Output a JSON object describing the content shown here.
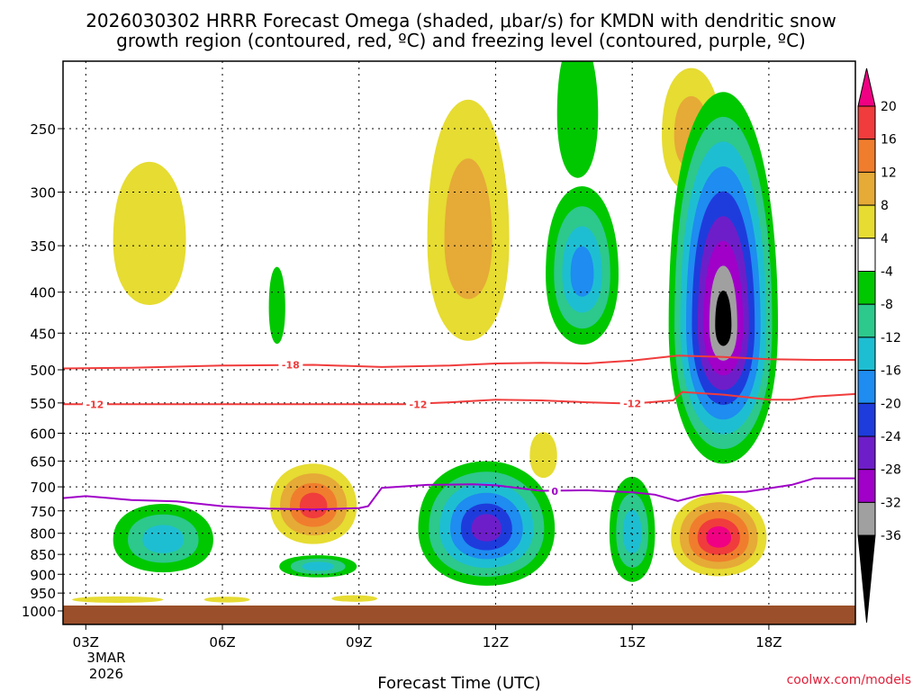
{
  "chart_data": {
    "type": "heatmap",
    "title_line1": "2026030302 HRRR Forecast Omega (shaded, μbar/s) for KMDN with dendritic snow",
    "title_line2": "growth region (contoured, red, ºC) and freezing level (contoured, purple, ºC)",
    "xlabel": "Forecast Time (UTC)",
    "x_ticks": [
      "03Z",
      "06Z",
      "09Z",
      "12Z",
      "15Z",
      "18Z"
    ],
    "x_tick_hours": [
      3,
      6,
      9,
      12,
      15,
      18
    ],
    "x_date_line1": "3MAR",
    "x_date_line2": "2026",
    "xlim": [
      2.5,
      19.9
    ],
    "y_ticks": [
      250,
      300,
      350,
      400,
      450,
      500,
      550,
      600,
      650,
      700,
      750,
      800,
      850,
      900,
      950,
      1000
    ],
    "ylim_hpa": [
      200,
      1000
    ],
    "colorbar": {
      "labels": [
        "20",
        "16",
        "12",
        "8",
        "4",
        "-4",
        "-8",
        "-12",
        "-16",
        "-20",
        "-24",
        "-28",
        "-32",
        "-36"
      ],
      "colors": [
        "#f00082",
        "#f03c3c",
        "#f07d2d",
        "#e6aa37",
        "#e6dc32",
        "#ffffff",
        "#00c800",
        "#2dc88c",
        "#1ebed2",
        "#1e8cf0",
        "#1e3cdc",
        "#6e1ec8",
        "#a000c8",
        "#a0a0a0",
        "#000000"
      ]
    },
    "contours": [
      {
        "name": "dgz-top",
        "label": "-18",
        "color": "#f03c3c",
        "points": [
          [
            2.5,
            498
          ],
          [
            4,
            497
          ],
          [
            6,
            494
          ],
          [
            8,
            493
          ],
          [
            9.5,
            496
          ],
          [
            11,
            494
          ],
          [
            12,
            491
          ],
          [
            13,
            490
          ],
          [
            14,
            491
          ],
          [
            15,
            487
          ],
          [
            16,
            480
          ],
          [
            17,
            482
          ],
          [
            18,
            485
          ],
          [
            19,
            486
          ],
          [
            19.9,
            486
          ]
        ],
        "label_at": [
          7.5,
          493
        ]
      },
      {
        "name": "dgz-bottom",
        "label": "-12",
        "color": "#f03c3c",
        "points": [
          [
            2.5,
            552
          ],
          [
            4,
            552
          ],
          [
            6,
            552
          ],
          [
            8,
            552
          ],
          [
            10,
            552
          ],
          [
            11,
            549
          ],
          [
            12,
            545
          ],
          [
            13,
            546
          ],
          [
            14,
            549
          ],
          [
            15,
            551
          ],
          [
            15.9,
            546
          ],
          [
            16.1,
            533
          ],
          [
            17,
            537
          ],
          [
            18,
            545
          ],
          [
            18.5,
            545
          ],
          [
            19,
            540
          ],
          [
            19.9,
            536
          ]
        ],
        "label_at": [
          [
            3.2,
            552
          ],
          [
            10.3,
            552
          ],
          [
            15.0,
            551
          ]
        ]
      },
      {
        "name": "freezing-level",
        "label": "0",
        "color": "#a000c8",
        "points": [
          [
            2.5,
            723
          ],
          [
            3,
            719
          ],
          [
            4,
            727
          ],
          [
            5,
            730
          ],
          [
            6,
            740
          ],
          [
            7,
            745
          ],
          [
            8,
            747
          ],
          [
            9,
            744
          ],
          [
            9.2,
            740
          ],
          [
            9.5,
            702
          ],
          [
            10.5,
            696
          ],
          [
            11.5,
            695
          ],
          [
            12,
            697
          ],
          [
            13,
            708
          ],
          [
            14,
            707
          ],
          [
            15,
            711
          ],
          [
            15.5,
            716
          ],
          [
            16,
            729
          ],
          [
            16.5,
            717
          ],
          [
            17,
            711
          ],
          [
            17.5,
            710
          ],
          [
            18,
            703
          ],
          [
            18.5,
            696
          ],
          [
            19,
            683
          ],
          [
            19.9,
            683
          ]
        ],
        "label_at": [
          13.3,
          709
        ]
      }
    ],
    "omega_cells": [
      {
        "id": "yellow-upper-left",
        "hour": 4.4,
        "hpa": 345,
        "dh": 0.8,
        "dp": 70,
        "values": [
          4
        ]
      },
      {
        "id": "green-small-07z",
        "hour": 7.2,
        "hpa": 418,
        "dh": 0.18,
        "dp": 46,
        "values": [
          -4
        ]
      },
      {
        "id": "upper-core-11z",
        "hour": 11.4,
        "hpa": 345,
        "dh": 0.9,
        "dp": 115,
        "values": [
          4,
          8
        ]
      },
      {
        "id": "upper-green-14z",
        "hour": 13.8,
        "hpa": 240,
        "dh": 0.45,
        "dp": 48,
        "values": [
          -4
        ]
      },
      {
        "id": "upper-green-14z-b",
        "hour": 13.9,
        "hpa": 380,
        "dh": 0.8,
        "dp": 85,
        "values": [
          -4,
          -8,
          -12,
          -16
        ]
      },
      {
        "id": "upper-yellow-16z",
        "hour": 16.3,
        "hpa": 255,
        "dh": 0.65,
        "dp": 45,
        "values": [
          4,
          8
        ]
      },
      {
        "id": "strong-ascent-17z",
        "hour": 17.0,
        "hpa": 440,
        "dh": 1.2,
        "dp": 215,
        "values": [
          -4,
          -8,
          -12,
          -16,
          -20,
          -24,
          -28,
          -32,
          -36
        ]
      },
      {
        "id": "low-green-05z",
        "hour": 4.7,
        "hpa": 815,
        "dh": 1.1,
        "dp": 80,
        "values": [
          -4,
          -8,
          -12
        ]
      },
      {
        "id": "low-yellow-08z",
        "hour": 8.0,
        "hpa": 740,
        "dh": 0.95,
        "dp": 85,
        "values": [
          4,
          8,
          12,
          16
        ]
      },
      {
        "id": "low-green-08z",
        "hour": 8.1,
        "hpa": 880,
        "dh": 0.85,
        "dp": 28,
        "values": [
          -4,
          -8,
          -12
        ]
      },
      {
        "id": "low-green-12z",
        "hour": 11.8,
        "hpa": 790,
        "dh": 1.5,
        "dp": 140,
        "values": [
          -4,
          -8,
          -12,
          -16,
          -20,
          -24
        ]
      },
      {
        "id": "yellow-13z",
        "hour": 13.05,
        "hpa": 640,
        "dh": 0.3,
        "dp": 42,
        "values": [
          4
        ]
      },
      {
        "id": "green-15z",
        "hour": 15.0,
        "hpa": 800,
        "dh": 0.5,
        "dp": 120,
        "values": [
          -4,
          -8,
          -12
        ]
      },
      {
        "id": "pink-17z",
        "hour": 16.9,
        "hpa": 810,
        "dh": 1.05,
        "dp": 95,
        "values": [
          4,
          8,
          12,
          16,
          20
        ]
      },
      {
        "id": "yellow-sfc-03z",
        "hour": 3.7,
        "hpa": 968,
        "dh": 1.0,
        "dp": 9,
        "values": [
          4
        ]
      },
      {
        "id": "yellow-sfc-06z",
        "hour": 6.1,
        "hpa": 968,
        "dh": 0.5,
        "dp": 8,
        "values": [
          4
        ]
      },
      {
        "id": "yellow-sfc-09z",
        "hour": 8.9,
        "hpa": 965,
        "dh": 0.5,
        "dp": 9,
        "values": [
          4
        ]
      }
    ],
    "ground_color": "#9b4f2a"
  },
  "credit": "coolwx.com/models"
}
